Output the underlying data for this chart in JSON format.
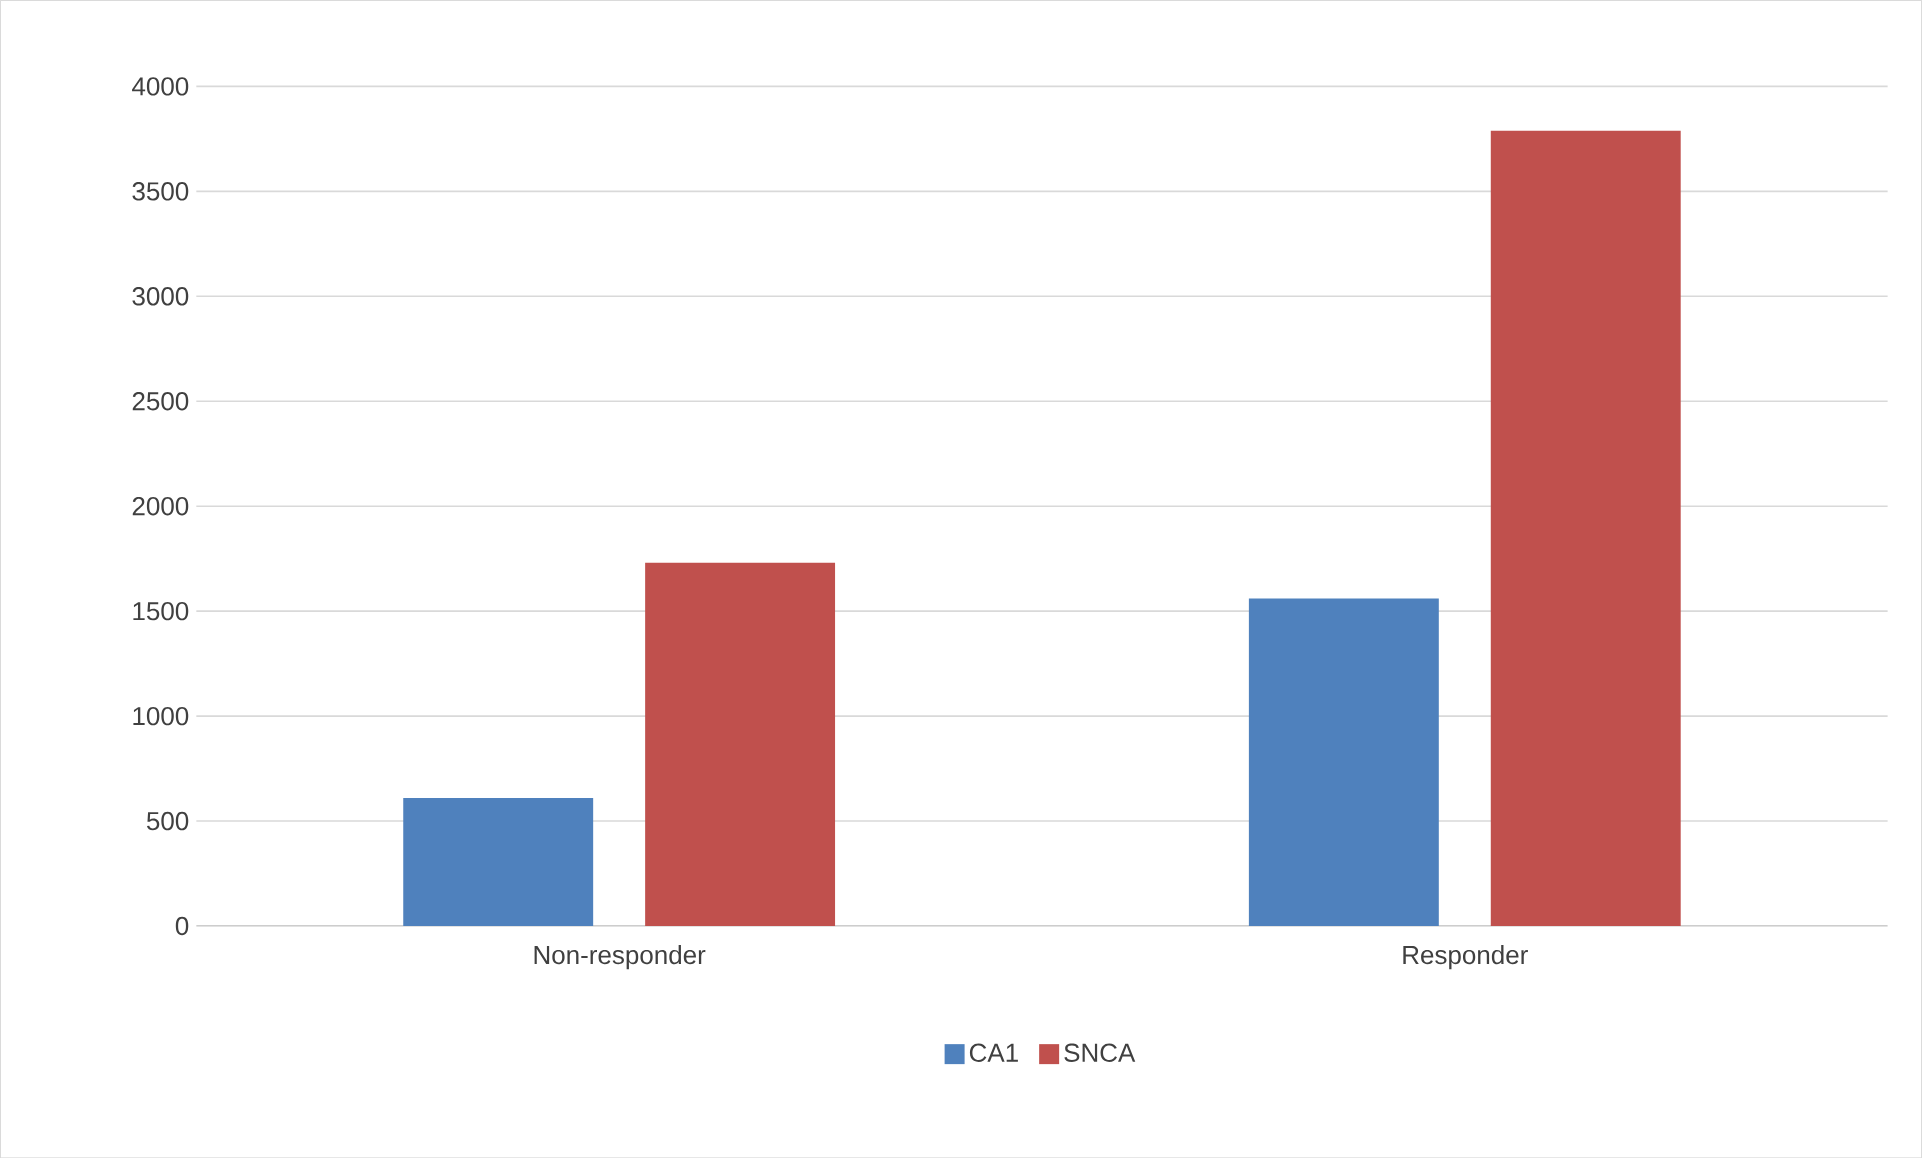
{
  "chart_data": {
    "type": "bar",
    "categories": [
      "Non-responder",
      "Responder"
    ],
    "series": [
      {
        "name": "CA1",
        "color": "#4f81bd",
        "values": [
          610,
          1560
        ]
      },
      {
        "name": "SNCA",
        "color": "#c0504d",
        "values": [
          1730,
          3790
        ]
      }
    ],
    "ylim": [
      0,
      4000
    ],
    "yticks": [
      0,
      500,
      1000,
      1500,
      2000,
      2500,
      3000,
      3500,
      4000
    ],
    "grid": "y",
    "legend": "bottom"
  }
}
